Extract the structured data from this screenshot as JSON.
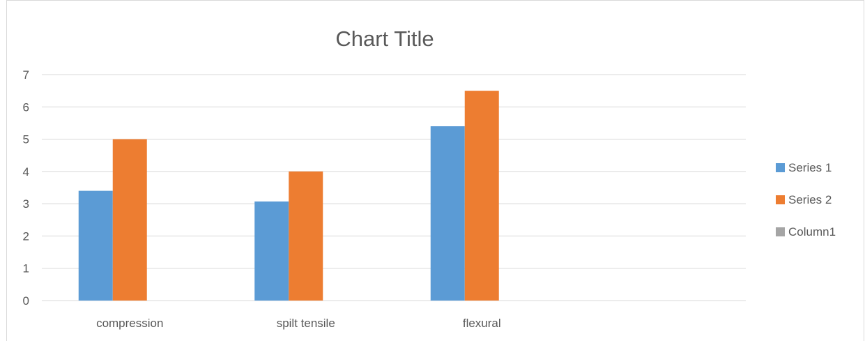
{
  "chart_data": {
    "type": "bar",
    "title": "Chart Title",
    "categories": [
      "compression",
      "spilt tensile",
      "flexural",
      ""
    ],
    "series": [
      {
        "name": "Series 1",
        "values": [
          3.4,
          3.07,
          5.4,
          null
        ],
        "color": "#5b9bd5"
      },
      {
        "name": "Series 2",
        "values": [
          5,
          4,
          6.5,
          null
        ],
        "color": "#ed7d31"
      },
      {
        "name": "Column1",
        "values": [
          null,
          null,
          null,
          null
        ],
        "color": "#a5a5a5"
      }
    ],
    "ylim": [
      0,
      7
    ],
    "yticks": [
      0,
      1,
      2,
      3,
      4,
      5,
      6,
      7
    ],
    "grid": true,
    "legend_position": "right"
  }
}
